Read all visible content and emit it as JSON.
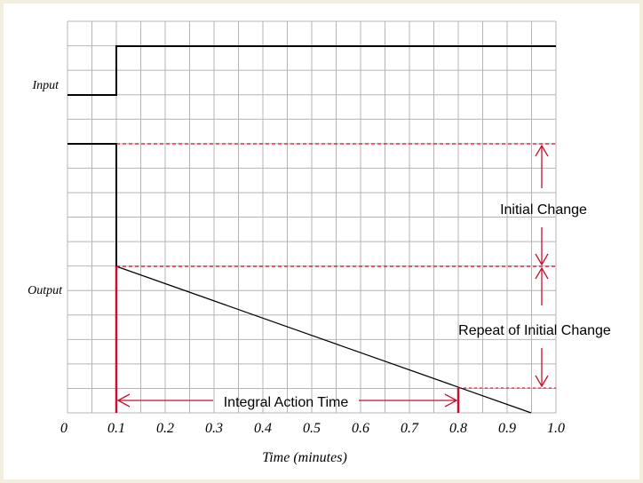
{
  "diagram": {
    "input_label": "Input",
    "output_label": "Output",
    "x_axis_title": "Time (minutes)",
    "x_ticks": [
      "0",
      "0.1",
      "0.2",
      "0.3",
      "0.4",
      "0.5",
      "0.6",
      "0.7",
      "0.8",
      "0.9",
      "1.0"
    ],
    "annotations": {
      "initial_change": "Initial Change",
      "repeat_initial_change": "Repeat of Initial Change",
      "integral_action_time": "Integral Action Time"
    },
    "colors": {
      "grid": "#b4b4b4",
      "signal": "#000000",
      "annotation": "#c8102e",
      "background": "#f2efdf"
    }
  }
}
